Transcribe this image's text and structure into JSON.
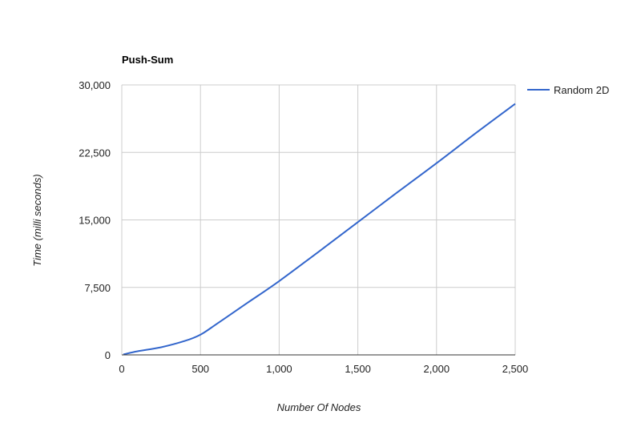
{
  "chart_data": {
    "type": "line",
    "title": "Push-Sum",
    "xlabel": "Number Of Nodes",
    "ylabel": "Time (milli seconds)",
    "xlim": [
      0,
      2500
    ],
    "ylim": [
      0,
      30000
    ],
    "x_ticks": [
      0,
      500,
      1000,
      1500,
      2000,
      2500
    ],
    "x_tick_labels": [
      "0",
      "500",
      "1,000",
      "1,500",
      "2,000",
      "2,500"
    ],
    "y_ticks": [
      0,
      7500,
      15000,
      22500,
      30000
    ],
    "y_tick_labels": [
      "0",
      "7,500",
      "15,000",
      "22,500",
      "30,000"
    ],
    "grid": true,
    "legend_position": "right",
    "series": [
      {
        "name": "Random 2D",
        "color": "#3366cc",
        "x": [
          10,
          100,
          250,
          400,
          500,
          600,
          800,
          1000,
          1250,
          1500,
          1750,
          2000,
          2250,
          2500
        ],
        "y": [
          50,
          400,
          850,
          1550,
          2250,
          3400,
          5800,
          8200,
          11450,
          14750,
          18050,
          21300,
          24650,
          27900
        ]
      }
    ]
  }
}
